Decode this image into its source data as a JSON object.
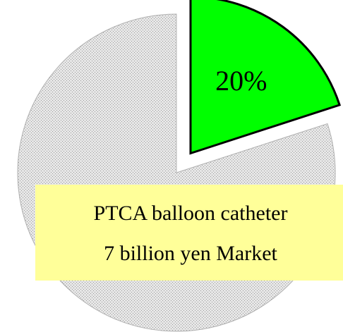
{
  "chart_data": {
    "type": "pie",
    "values": [
      20,
      80
    ],
    "value_labels": [
      "20%",
      null
    ],
    "colors": [
      "#00ff00",
      "#d4d4d4"
    ],
    "explode": [
      true,
      false
    ],
    "annotation": [
      "PTCA balloon catheter",
      "7 billion yen Market"
    ]
  }
}
